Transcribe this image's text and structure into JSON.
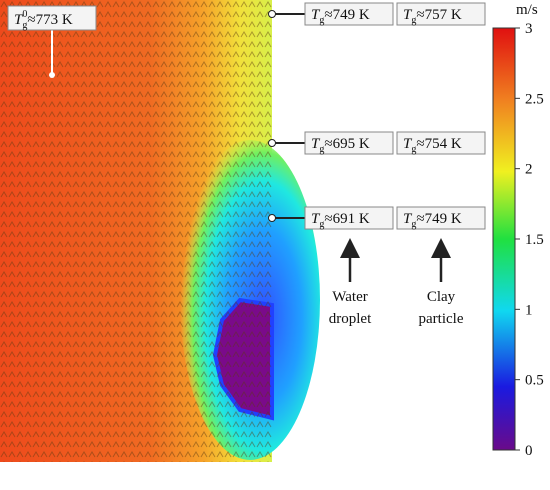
{
  "chart_data": {
    "type": "field",
    "colorbar": {
      "label": "m/s",
      "lim": [
        0,
        3
      ],
      "ticks": [
        0,
        0.5,
        1,
        1.5,
        2,
        2.5,
        3
      ]
    },
    "initial": {
      "symbol": "T",
      "sub": "g",
      "sup": "0",
      "text": "≈773 K"
    },
    "rows": [
      {
        "droplet": {
          "symbol": "T",
          "sub": "g",
          "text": "≈749 K"
        },
        "particle": {
          "symbol": "T",
          "sub": "g",
          "text": "≈757 K"
        }
      },
      {
        "droplet": {
          "symbol": "T",
          "sub": "g",
          "text": "≈695 K"
        },
        "particle": {
          "symbol": "T",
          "sub": "g",
          "text": "≈754 K"
        }
      },
      {
        "droplet": {
          "symbol": "T",
          "sub": "g",
          "text": "≈691 K"
        },
        "particle": {
          "symbol": "T",
          "sub": "g",
          "text": "≈749 K"
        }
      }
    ],
    "labels": {
      "droplet": [
        "Water",
        "droplet"
      ],
      "particle": [
        "Clay",
        "particle"
      ]
    }
  }
}
